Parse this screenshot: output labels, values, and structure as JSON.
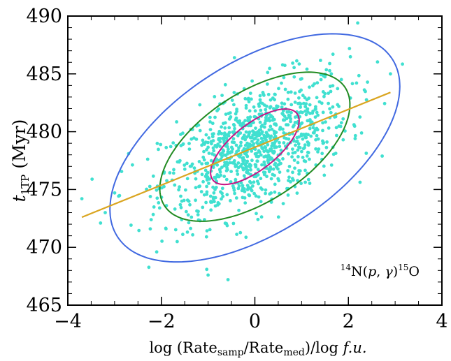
{
  "chart_data": {
    "type": "scatter",
    "xlabel": {
      "prefix": "log (Rate",
      "sub1": "samp",
      "mid": "/Rate",
      "sub2": "med",
      "suffix": ")/log ",
      "ital": "f.u."
    },
    "ylabel": {
      "main": "t",
      "sub": "1TP",
      "unit": " (Myr)"
    },
    "annotation": {
      "sup1": "14",
      "base1": "N(",
      "ital1": "p",
      "comma": ", ",
      "ital2": "γ",
      "close": ")",
      "sup2": "15",
      "base2": "O"
    },
    "xlim": [
      -4,
      4
    ],
    "ylim": [
      465,
      490
    ],
    "xticks": [
      -4,
      -2,
      0,
      2,
      4
    ],
    "xtick_labels": [
      "−4",
      "−2",
      "0",
      "2",
      "4"
    ],
    "yticks": [
      465,
      470,
      475,
      480,
      485,
      490
    ],
    "ytick_labels": [
      "465",
      "470",
      "475",
      "480",
      "485",
      "490"
    ],
    "fit_line": {
      "x": [
        -3.7,
        2.9
      ],
      "y": [
        472.6,
        483.4
      ],
      "color": "#DAA520"
    },
    "ellipses": [
      {
        "cx": 0.0,
        "cy": 478.7,
        "rx": 0.97,
        "ry": 3.15,
        "theta_deg": 21.4,
        "color": "#C71585"
      },
      {
        "cx": 0.0,
        "cy": 478.7,
        "rx": 2.07,
        "ry": 6.25,
        "theta_deg": 16.6,
        "color": "#228B22"
      },
      {
        "cx": 0.0,
        "cy": 478.6,
        "rx": 3.15,
        "ry": 9.6,
        "theta_deg": 15.8,
        "color": "#4169E1"
      }
    ],
    "points": {
      "color": "#40E0D0",
      "count": 1000,
      "slope": 1.64,
      "intercept": 478.6,
      "x_std": 1.0,
      "residual_std": 2.6,
      "outliers": [
        [
          -3.7,
          474.2
        ],
        [
          -3.3,
          472.1
        ],
        [
          -3.2,
          473.0
        ],
        [
          -2.7,
          478.1
        ],
        [
          2.2,
          489.4
        ],
        [
          2.9,
          485.0
        ],
        [
          -1.0,
          467.6
        ],
        [
          -2.1,
          469.6
        ]
      ]
    },
    "grid": false,
    "tick_direction": "in",
    "ticks_on_all_sides": true,
    "minor_ticks": true
  }
}
